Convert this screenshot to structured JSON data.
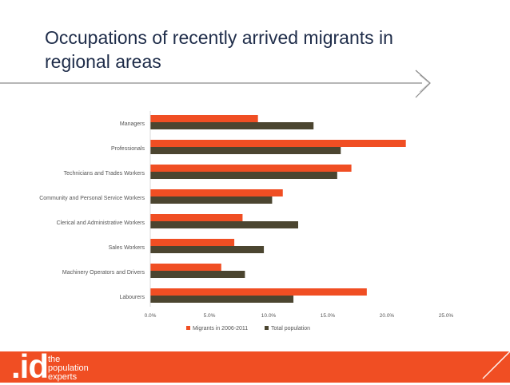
{
  "slide": {
    "title": "Occupations of recently arrived migrants in regional areas"
  },
  "logo": {
    "mark": ".id",
    "tagline": [
      "the",
      "population",
      "experts"
    ]
  },
  "colors": {
    "title": "#1f2d4a",
    "migrants": "#f04e23",
    "total": "#4b4530",
    "footer": "#f04e23",
    "rule": "#8a8a8a"
  },
  "chart_data": {
    "type": "bar",
    "orientation": "horizontal",
    "categories": [
      "Managers",
      "Professionals",
      "Technicians and Trades Workers",
      "Community and Personal Service Workers",
      "Clerical and Administrative Workers",
      "Sales Workers",
      "Machinery Operators and Drivers",
      "Labourers"
    ],
    "series": [
      {
        "name": "Migrants in 2006-2011",
        "color": "#f04e23",
        "values": [
          9.1,
          21.6,
          17.0,
          11.2,
          7.8,
          7.1,
          6.0,
          18.3
        ]
      },
      {
        "name": "Total population",
        "color": "#4b4530",
        "values": [
          13.8,
          16.1,
          15.8,
          10.3,
          12.5,
          9.6,
          8.0,
          12.1
        ]
      }
    ],
    "xlim": [
      0,
      25
    ],
    "xticks": [
      "0.0%",
      "5.0%",
      "10.0%",
      "15.0%",
      "20.0%",
      "25.0%"
    ],
    "grid": false,
    "legend": "bottom"
  }
}
